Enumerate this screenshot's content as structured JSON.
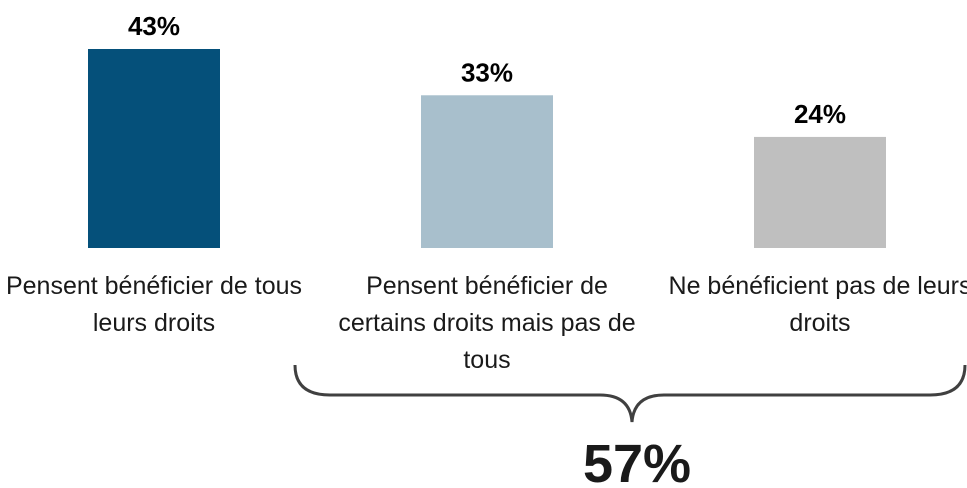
{
  "chart_data": {
    "type": "bar",
    "categories": [
      "Pensent bénéficier de tous leurs droits",
      "Pensent bénéficier de certains droits mais pas de tous",
      "Ne bénéficient pas de leurs droits"
    ],
    "values": [
      43,
      33,
      24
    ],
    "value_labels": [
      "43%",
      "33%",
      "24%"
    ],
    "colors": [
      "#05507a",
      "#a8bfcc",
      "#bfbfbf"
    ],
    "annotation": "57%"
  }
}
